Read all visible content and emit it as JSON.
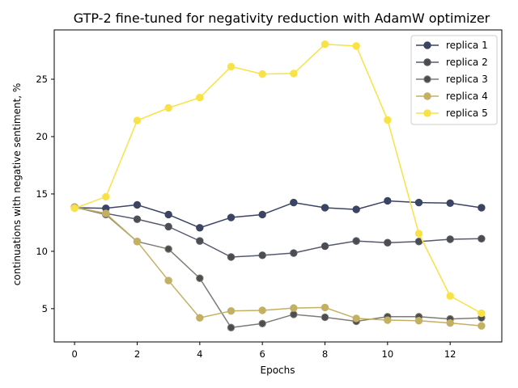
{
  "chart_data": {
    "type": "line",
    "title": "GTP-2 fine-tuned for negativity reduction with AdamW optimizer",
    "xlabel": "Epochs",
    "ylabel": "continuations with negative sentiment, %",
    "xlim": [
      -0.65,
      13.65
    ],
    "ylim": [
      2.1,
      29.3
    ],
    "xticks": [
      0,
      2,
      4,
      6,
      8,
      10,
      12
    ],
    "yticks": [
      5,
      10,
      15,
      20,
      25
    ],
    "grid": false,
    "legend_position": "top-right",
    "x": [
      0,
      1,
      2,
      3,
      4,
      5,
      6,
      7,
      8,
      9,
      10,
      11,
      12,
      13
    ],
    "series": [
      {
        "name": "replica 1",
        "color": "#3b4462",
        "marker": "circle",
        "values": [
          13.8,
          13.75,
          14.05,
          13.2,
          12.05,
          12.95,
          13.2,
          14.25,
          13.8,
          13.65,
          14.4,
          14.25,
          14.2,
          13.8
        ]
      },
      {
        "name": "replica 2",
        "color": "#555a6e",
        "marker": "hatched-circle",
        "values": [
          13.85,
          13.3,
          12.8,
          12.15,
          10.9,
          9.5,
          9.65,
          9.85,
          10.45,
          10.9,
          10.75,
          10.85,
          11.05,
          11.1
        ]
      },
      {
        "name": "replica 3",
        "color": "#7d7b74",
        "marker": "hatched-circle",
        "values": [
          13.85,
          13.2,
          10.85,
          10.2,
          7.65,
          3.35,
          3.7,
          4.5,
          4.25,
          3.9,
          4.3,
          4.3,
          4.1,
          4.2
        ]
      },
      {
        "name": "replica 4",
        "color": "#c4b062",
        "marker": "circle",
        "values": [
          13.85,
          13.3,
          10.85,
          7.45,
          4.2,
          4.8,
          4.85,
          5.05,
          5.1,
          4.15,
          4.0,
          3.95,
          3.75,
          3.5
        ]
      },
      {
        "name": "replica 5",
        "color": "#f8e245",
        "marker": "circle",
        "values": [
          13.75,
          14.75,
          21.4,
          22.5,
          23.4,
          26.1,
          25.45,
          25.5,
          28.05,
          27.9,
          21.45,
          11.55,
          6.1,
          4.6
        ]
      }
    ]
  }
}
